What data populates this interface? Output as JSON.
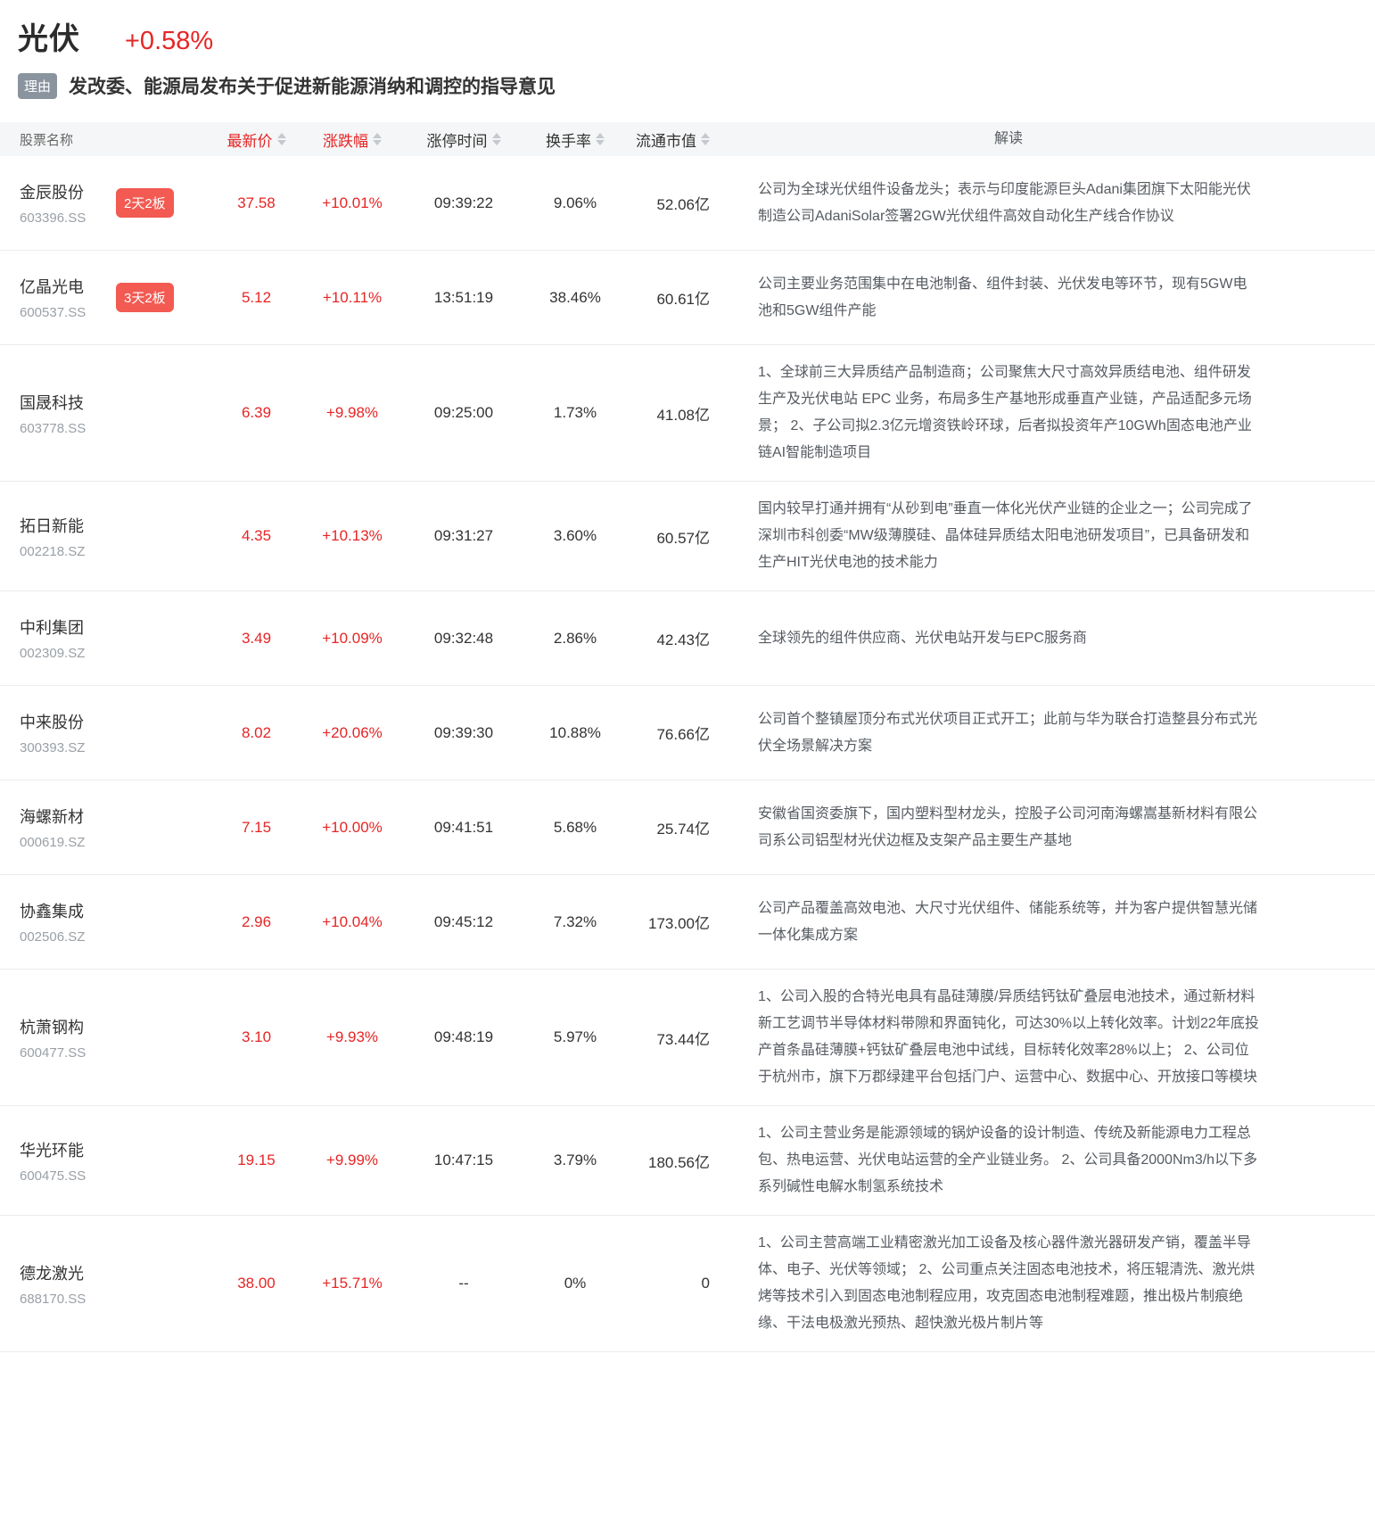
{
  "header": {
    "sector_name": "光伏",
    "sector_change": "+0.58%",
    "reason_tag": "理由",
    "reason_text": "发改委、能源局发布关于促进新能源消纳和调控的指导意见"
  },
  "table": {
    "columns": [
      {
        "label": "股票名称",
        "sortable": false
      },
      {
        "label": "最新价",
        "sortable": true
      },
      {
        "label": "涨跌幅",
        "sortable": true
      },
      {
        "label": "涨停时间",
        "sortable": true
      },
      {
        "label": "换手率",
        "sortable": true
      },
      {
        "label": "流通市值",
        "sortable": true
      },
      {
        "label": "解读",
        "sortable": false
      }
    ],
    "rows": [
      {
        "name": "金辰股份",
        "code": "603396.SS",
        "badge": "2天2板",
        "price": "37.58",
        "change": "+10.01%",
        "limit_time": "09:39:22",
        "turnover": "9.06%",
        "market_cap": "52.06亿",
        "interpretation": "公司为全球光伏组件设备龙头；表示与印度能源巨头Adani集团旗下太阳能光伏制造公司AdaniSolar签署2GW光伏组件高效自动化生产线合作协议"
      },
      {
        "name": "亿晶光电",
        "code": "600537.SS",
        "badge": "3天2板",
        "price": "5.12",
        "change": "+10.11%",
        "limit_time": "13:51:19",
        "turnover": "38.46%",
        "market_cap": "60.61亿",
        "interpretation": "公司主要业务范围集中在电池制备、组件封装、光伏发电等环节，现有5GW电池和5GW组件产能"
      },
      {
        "name": "国晟科技",
        "code": "603778.SS",
        "badge": "",
        "price": "6.39",
        "change": "+9.98%",
        "limit_time": "09:25:00",
        "turnover": "1.73%",
        "market_cap": "41.08亿",
        "interpretation": "1、全球前三大异质结产品制造商；公司聚焦大尺寸高效异质结电池、组件研发生产及光伏电站 EPC 业务，布局多生产基地形成垂直产业链，产品适配多元场景； 2、子公司拟2.3亿元增资铁岭环球，后者拟投资年产10GWh固态电池产业链AI智能制造项目"
      },
      {
        "name": "拓日新能",
        "code": "002218.SZ",
        "badge": "",
        "price": "4.35",
        "change": "+10.13%",
        "limit_time": "09:31:27",
        "turnover": "3.60%",
        "market_cap": "60.57亿",
        "interpretation": "国内较早打通并拥有“从砂到电”垂直一体化光伏产业链的企业之一；公司完成了深圳市科创委“MW级薄膜硅、晶体硅异质结太阳电池研发项目”，已具备研发和生产HIT光伏电池的技术能力"
      },
      {
        "name": "中利集团",
        "code": "002309.SZ",
        "badge": "",
        "price": "3.49",
        "change": "+10.09%",
        "limit_time": "09:32:48",
        "turnover": "2.86%",
        "market_cap": "42.43亿",
        "interpretation": "全球领先的组件供应商、光伏电站开发与EPC服务商"
      },
      {
        "name": "中来股份",
        "code": "300393.SZ",
        "badge": "",
        "price": "8.02",
        "change": "+20.06%",
        "limit_time": "09:39:30",
        "turnover": "10.88%",
        "market_cap": "76.66亿",
        "interpretation": "公司首个整镇屋顶分布式光伏项目正式开工；此前与华为联合打造整县分布式光伏全场景解决方案"
      },
      {
        "name": "海螺新材",
        "code": "000619.SZ",
        "badge": "",
        "price": "7.15",
        "change": "+10.00%",
        "limit_time": "09:41:51",
        "turnover": "5.68%",
        "market_cap": "25.74亿",
        "interpretation": "安徽省国资委旗下，国内塑料型材龙头，控股子公司河南海螺嵩基新材料有限公司系公司铝型材光伏边框及支架产品主要生产基地"
      },
      {
        "name": "协鑫集成",
        "code": "002506.SZ",
        "badge": "",
        "price": "2.96",
        "change": "+10.04%",
        "limit_time": "09:45:12",
        "turnover": "7.32%",
        "market_cap": "173.00亿",
        "interpretation": "公司产品覆盖高效电池、大尺寸光伏组件、储能系统等，并为客户提供智慧光储一体化集成方案"
      },
      {
        "name": "杭萧钢构",
        "code": "600477.SS",
        "badge": "",
        "price": "3.10",
        "change": "+9.93%",
        "limit_time": "09:48:19",
        "turnover": "5.97%",
        "market_cap": "73.44亿",
        "interpretation": "1、公司入股的合特光电具有晶硅薄膜/异质结钙钛矿叠层电池技术，通过新材料新工艺调节半导体材料带隙和界面钝化，可达30%以上转化效率。计划22年底投产首条晶硅薄膜+钙钛矿叠层电池中试线，目标转化效率28%以上； 2、公司位于杭州市，旗下万郡绿建平台包括门户、运营中心、数据中心、开放接口等模块"
      },
      {
        "name": "华光环能",
        "code": "600475.SS",
        "badge": "",
        "price": "19.15",
        "change": "+9.99%",
        "limit_time": "10:47:15",
        "turnover": "3.79%",
        "market_cap": "180.56亿",
        "interpretation": "1、公司主营业务是能源领域的锅炉设备的设计制造、传统及新能源电力工程总包、热电运营、光伏电站运营的全产业链业务。 2、公司具备2000Nm3/h以下多系列碱性电解水制氢系统技术"
      },
      {
        "name": "德龙激光",
        "code": "688170.SS",
        "badge": "",
        "price": "38.00",
        "change": "+15.71%",
        "limit_time": "--",
        "turnover": "0%",
        "market_cap": "0",
        "interpretation": "1、公司主营高端工业精密激光加工设备及核心器件激光器研发产销，覆盖半导体、电子、光伏等领域； 2、公司重点关注固态电池技术，将压辊清洗、激光烘烤等技术引入到固态电池制程应用，攻克固态电池制程难题，推出极片制痕绝缘、干法电极激光预热、超快激光极片制片等"
      }
    ]
  },
  "colors": {
    "accent_red": "#e62525",
    "streak_badge_bg": "#f25a52",
    "reason_badge_bg": "#8a949f",
    "thead_bg": "#f5f6f7"
  }
}
